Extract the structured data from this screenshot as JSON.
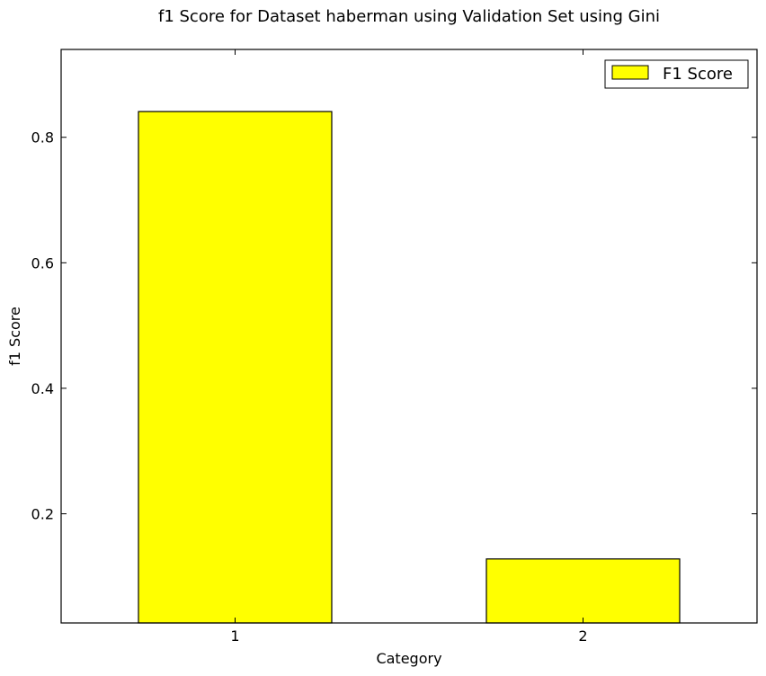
{
  "chart_data": {
    "type": "bar",
    "title": "f1 Score for Dataset haberman using Validation Set using Gini",
    "xlabel": "Category",
    "ylabel": "f1 Score",
    "categories": [
      "1",
      "2"
    ],
    "series": [
      {
        "name": "F1 Score",
        "values": [
          0.841,
          0.128
        ],
        "color": "#ffff00"
      }
    ],
    "ylim": [
      0.026,
      0.94
    ],
    "yticks": [
      0.2,
      0.4,
      0.6,
      0.8
    ],
    "ytick_labels": [
      "0.2",
      "0.4",
      "0.6",
      "0.8"
    ],
    "grid": false,
    "legend": {
      "position": "top-right",
      "label": "F1 Score"
    }
  }
}
